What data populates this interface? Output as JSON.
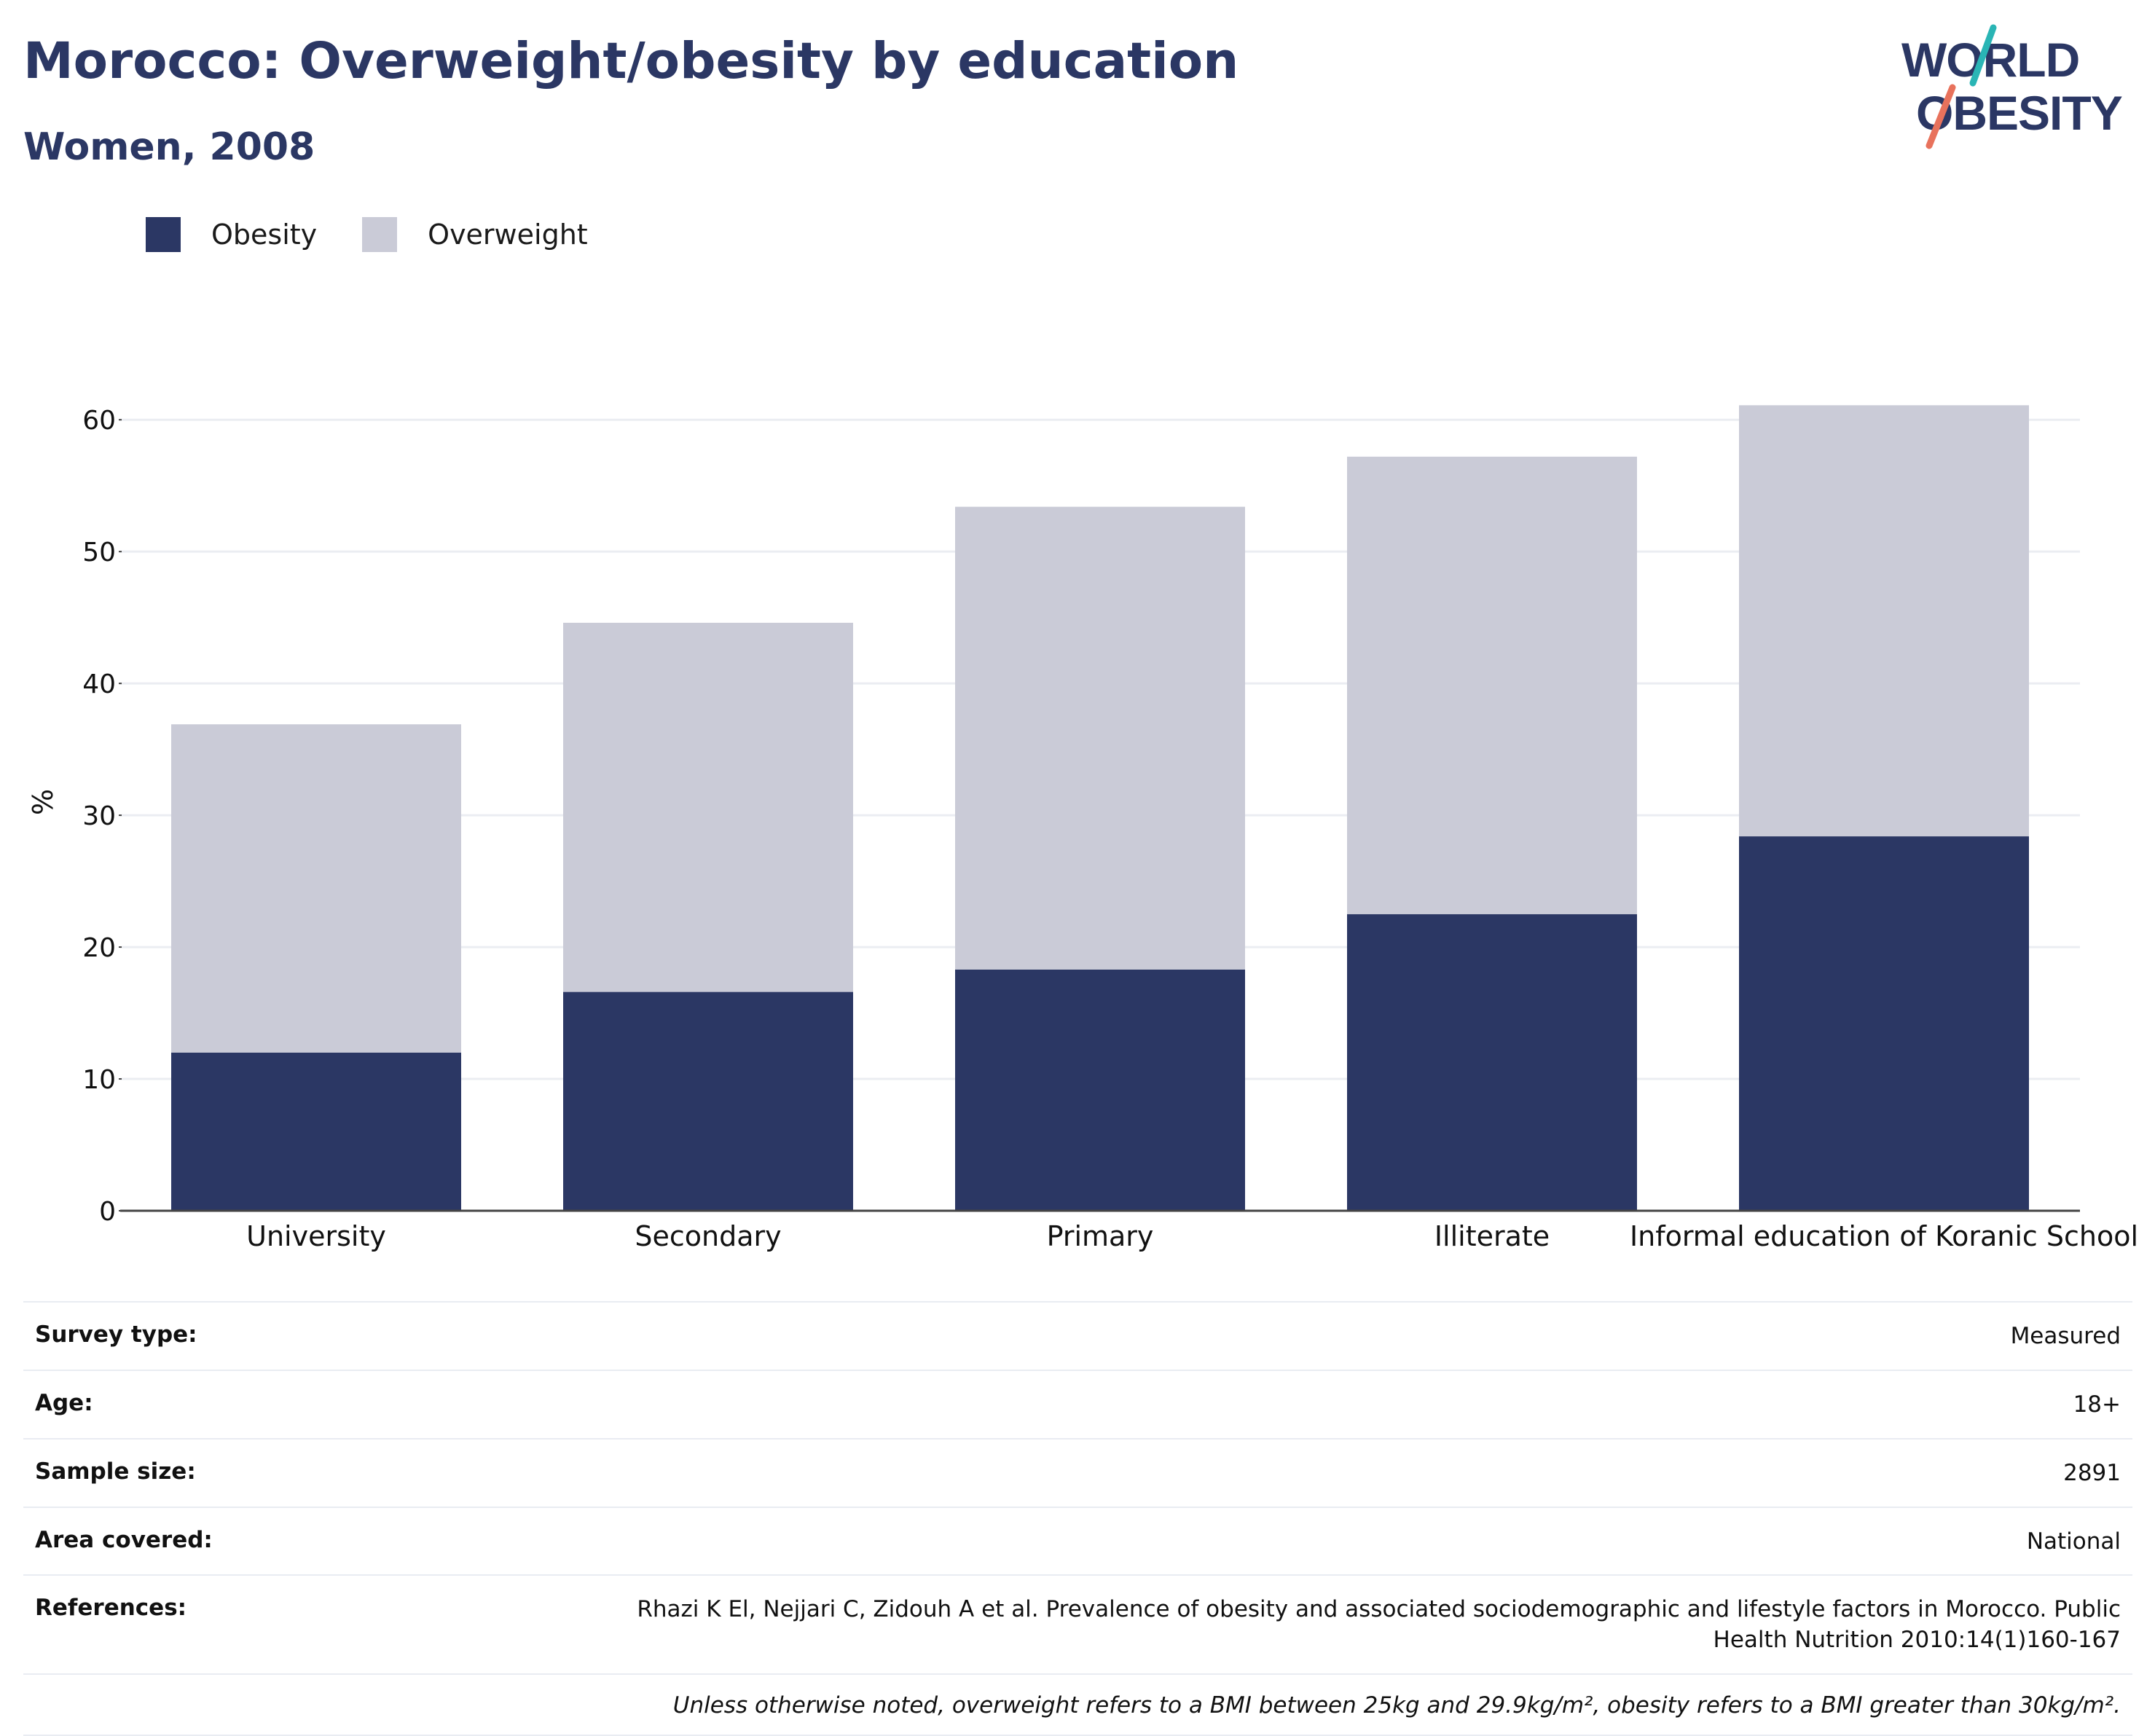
{
  "header": {
    "title": "Morocco: Overweight/obesity by education",
    "subtitle": "Women, 2008",
    "logo_line1": "WORLD",
    "logo_line2": "OBESITY"
  },
  "colors": {
    "obesity": "#2b3764",
    "overweight": "#cacbd7",
    "logo_teal": "#2ab5b5",
    "logo_coral": "#e8725c",
    "text": "#2b3764"
  },
  "legend": [
    {
      "label": "Obesity",
      "color": "#2b3764"
    },
    {
      "label": "Overweight",
      "color": "#cacbd7"
    }
  ],
  "chart_data": {
    "type": "bar",
    "stacked": true,
    "ylabel": "%",
    "ylim": [
      0,
      62
    ],
    "yticks": [
      0,
      10,
      20,
      30,
      40,
      50,
      60
    ],
    "grid": true,
    "legend_position": "top-left",
    "categories": [
      "University",
      "Secondary",
      "Primary",
      "Illiterate",
      "Informal education of Koranic School"
    ],
    "series": [
      {
        "name": "Obesity",
        "values": [
          12.0,
          16.6,
          18.3,
          22.5,
          28.4
        ]
      },
      {
        "name": "Overweight",
        "values": [
          24.9,
          28.0,
          35.1,
          34.7,
          32.7
        ]
      }
    ]
  },
  "meta": {
    "rows": [
      {
        "key": "Survey type:",
        "value": "Measured"
      },
      {
        "key": "Age:",
        "value": "18+"
      },
      {
        "key": "Sample size:",
        "value": "2891"
      },
      {
        "key": "Area covered:",
        "value": "National"
      },
      {
        "key": "References:",
        "value": "Rhazi K El, Nejjari C, Zidouh A et al. Prevalence of obesity and associated sociodemographic and lifestyle factors in Morocco. Public Health Nutrition 2010:14(1)160-167"
      }
    ],
    "note": "Unless otherwise noted, overweight refers to a BMI between 25kg and 29.9kg/m², obesity refers to a BMI greater than 30kg/m²."
  }
}
